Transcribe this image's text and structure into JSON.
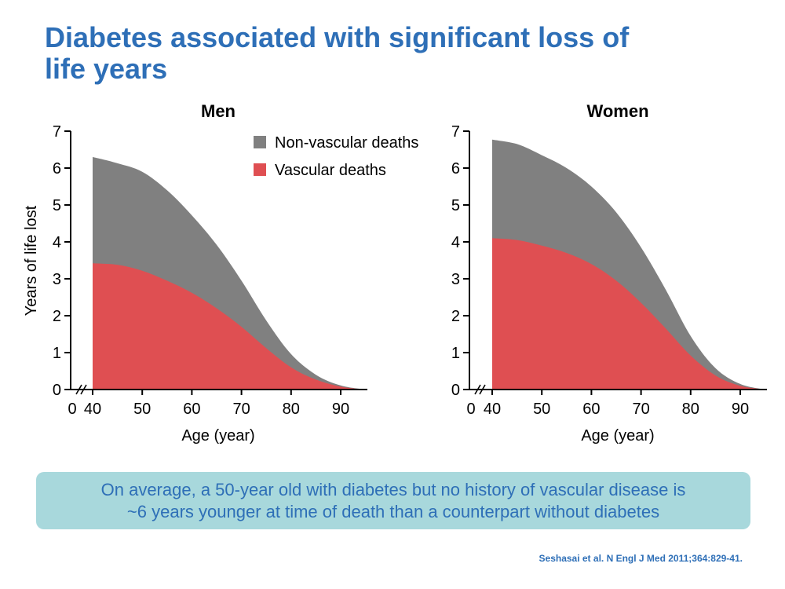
{
  "title": {
    "line1": "Diabetes associated with significant loss of",
    "line2": "life years"
  },
  "colors": {
    "title": "#2e6fb7",
    "non_vascular": "#808080",
    "vascular": "#df4f52",
    "callout_bg": "#a8d8dc"
  },
  "legend": [
    {
      "label": "Non-vascular deaths",
      "color": "#808080"
    },
    {
      "label": "Vascular deaths",
      "color": "#df4f52"
    }
  ],
  "chart_data": [
    {
      "type": "area",
      "title": "Men",
      "xlabel": "Age (year)",
      "ylabel": "Years of life lost",
      "xticks": [
        "0",
        "40",
        "50",
        "60",
        "70",
        "80",
        "90"
      ],
      "yticks": [
        "0",
        "1",
        "2",
        "3",
        "4",
        "5",
        "6",
        "7"
      ],
      "xlim": [
        40,
        95
      ],
      "ylim": [
        0,
        7
      ],
      "axis_break": true,
      "stacked": true,
      "legend_position": "top-right",
      "x": [
        40,
        45,
        50,
        55,
        60,
        65,
        70,
        75,
        80,
        85,
        90,
        95
      ],
      "series": [
        {
          "name": "Vascular deaths",
          "values": [
            3.42,
            3.38,
            3.22,
            2.95,
            2.62,
            2.2,
            1.7,
            1.12,
            0.6,
            0.27,
            0.08,
            0
          ]
        },
        {
          "name": "Non-vascular deaths",
          "values": [
            2.88,
            2.75,
            2.68,
            2.45,
            2.1,
            1.72,
            1.25,
            0.75,
            0.36,
            0.13,
            0.03,
            0
          ]
        }
      ]
    },
    {
      "type": "area",
      "title": "Women",
      "xlabel": "Age (year)",
      "ylabel": "",
      "xticks": [
        "0",
        "40",
        "50",
        "60",
        "70",
        "80",
        "90"
      ],
      "yticks": [
        "0",
        "1",
        "2",
        "3",
        "4",
        "5",
        "6",
        "7"
      ],
      "xlim": [
        40,
        95
      ],
      "ylim": [
        0,
        7
      ],
      "axis_break": true,
      "stacked": true,
      "x": [
        40,
        45,
        50,
        55,
        60,
        65,
        70,
        75,
        80,
        85,
        90,
        95
      ],
      "series": [
        {
          "name": "Vascular deaths",
          "values": [
            4.1,
            4.05,
            3.9,
            3.7,
            3.4,
            2.95,
            2.35,
            1.65,
            0.92,
            0.38,
            0.1,
            0
          ]
        },
        {
          "name": "Non-vascular deaths",
          "values": [
            2.67,
            2.6,
            2.45,
            2.3,
            2.1,
            1.85,
            1.5,
            1.05,
            0.53,
            0.2,
            0.05,
            0
          ]
        }
      ]
    }
  ],
  "callout": {
    "line1": "On average, a 50-year old with diabetes but no history of vascular disease is",
    "line2": "~6 years younger at time of death than a counterpart without diabetes"
  },
  "citation": "Seshasai et al. N Engl J Med 2011;364:829-41."
}
